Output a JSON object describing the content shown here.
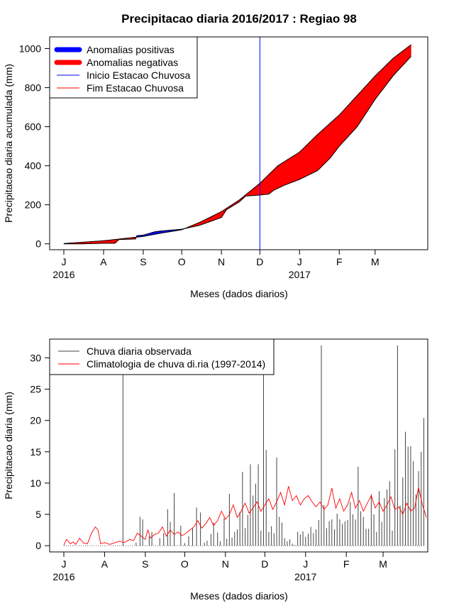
{
  "chart_data": [
    {
      "type": "area",
      "title": "Precipitacao diaria 2016/2017 : Regiao 98",
      "xlabel": "Meses (dados diarios)",
      "ylabel": "Precipitacao diaria acumulada (mm)",
      "x_ticks": [
        "J",
        "A",
        "S",
        "O",
        "N",
        "D",
        "J",
        "F",
        "M"
      ],
      "x_tick_dates": [
        "2016-07-01",
        "2016-08-01",
        "2016-09-01",
        "2016-10-01",
        "2016-11-01",
        "2016-12-01",
        "2017-01-01",
        "2017-02-01",
        "2017-03-01"
      ],
      "year_labels": [
        {
          "label": "2016",
          "date": "2016-07-01"
        },
        {
          "label": "2017",
          "date": "2017-01-01"
        }
      ],
      "xlim": [
        "2016-07-01",
        "2017-03-31"
      ],
      "y_ticks": [
        0,
        200,
        400,
        600,
        800,
        1000
      ],
      "ylim": [
        -30,
        1060
      ],
      "legend": {
        "position": "top-left",
        "entries": [
          {
            "label": "Anomalias positivas",
            "color": "#0000ff",
            "style": "thick"
          },
          {
            "label": "Anomalias negativas",
            "color": "#ff0000",
            "style": "thick"
          },
          {
            "label": "Inicio Estacao Chuvosa",
            "color": "#0000ff",
            "style": "thin"
          },
          {
            "label": "Fim Estacao Chuvosa",
            "color": "#ff0000",
            "style": "thin"
          }
        ]
      },
      "rainy_season_start": "2016-12-01",
      "series": [
        {
          "name": "Climatologia acumulada",
          "points": [
            [
              "2016-07-01",
              2
            ],
            [
              "2016-07-15",
              8
            ],
            [
              "2016-08-01",
              16
            ],
            [
              "2016-08-15",
              26
            ],
            [
              "2016-09-01",
              38
            ],
            [
              "2016-09-15",
              55
            ],
            [
              "2016-10-01",
              72
            ],
            [
              "2016-10-15",
              110
            ],
            [
              "2016-11-01",
              165
            ],
            [
              "2016-11-15",
              225
            ],
            [
              "2016-12-01",
              310
            ],
            [
              "2016-12-15",
              400
            ],
            [
              "2017-01-01",
              470
            ],
            [
              "2017-01-15",
              560
            ],
            [
              "2017-02-01",
              660
            ],
            [
              "2017-02-15",
              760
            ],
            [
              "2017-03-01",
              860
            ],
            [
              "2017-03-15",
              950
            ],
            [
              "2017-03-29",
              1020
            ]
          ]
        },
        {
          "name": "Observado acumulado",
          "points": [
            [
              "2016-07-01",
              0
            ],
            [
              "2016-07-15",
              0
            ],
            [
              "2016-08-01",
              3
            ],
            [
              "2016-08-10",
              3
            ],
            [
              "2016-08-13",
              22
            ],
            [
              "2016-08-26",
              25
            ],
            [
              "2016-08-27",
              42
            ],
            [
              "2016-09-01",
              45
            ],
            [
              "2016-09-10",
              62
            ],
            [
              "2016-09-15",
              66
            ],
            [
              "2016-10-01",
              75
            ],
            [
              "2016-10-15",
              95
            ],
            [
              "2016-11-01",
              135
            ],
            [
              "2016-11-05",
              175
            ],
            [
              "2016-11-15",
              215
            ],
            [
              "2016-11-20",
              245
            ],
            [
              "2016-12-01",
              250
            ],
            [
              "2016-12-08",
              255
            ],
            [
              "2016-12-12",
              275
            ],
            [
              "2016-12-20",
              300
            ],
            [
              "2017-01-01",
              330
            ],
            [
              "2017-01-15",
              375
            ],
            [
              "2017-01-25",
              440
            ],
            [
              "2017-02-01",
              500
            ],
            [
              "2017-02-15",
              600
            ],
            [
              "2017-03-01",
              740
            ],
            [
              "2017-03-15",
              860
            ],
            [
              "2017-03-29",
              960
            ]
          ]
        }
      ]
    },
    {
      "type": "bar",
      "xlabel": "Meses (dados diarios)",
      "ylabel": "Precipitacao diaria (mm)",
      "x_ticks": [
        "J",
        "A",
        "S",
        "O",
        "N",
        "D",
        "J",
        "F",
        "M"
      ],
      "x_tick_dates": [
        "2016-07-01",
        "2016-08-01",
        "2016-09-01",
        "2016-10-01",
        "2016-11-01",
        "2016-12-01",
        "2017-01-01",
        "2017-02-01",
        "2017-03-01"
      ],
      "year_labels": [
        {
          "label": "2016",
          "date": "2016-07-01"
        },
        {
          "label": "2017",
          "date": "2017-01-01"
        }
      ],
      "xlim": [
        "2016-07-01",
        "2017-04-04"
      ],
      "y_ticks": [
        0,
        5,
        10,
        15,
        20,
        25,
        30
      ],
      "ylim": [
        -1,
        33
      ],
      "legend": {
        "position": "top-left",
        "entries": [
          {
            "label": "Chuva diaria observada",
            "color": "#444444"
          },
          {
            "label": "Climatologia de chuva di.ria (1997-2014)",
            "color": "#ff0000"
          }
        ]
      },
      "observed_color": "#444444",
      "climatology_color": "#ff0000",
      "observed_daily": [
        [
          "2016-08-15",
          27.5
        ],
        [
          "2016-08-25",
          0.5
        ],
        [
          "2016-08-28",
          4.6
        ],
        [
          "2016-08-30",
          4.2
        ],
        [
          "2016-09-04",
          1.5
        ],
        [
          "2016-09-06",
          2.2
        ],
        [
          "2016-09-12",
          1.2
        ],
        [
          "2016-09-15",
          2.0
        ],
        [
          "2016-09-18",
          5.8
        ],
        [
          "2016-09-20",
          3.8
        ],
        [
          "2016-09-23",
          8.4
        ],
        [
          "2016-09-28",
          3.2
        ],
        [
          "2016-10-01",
          0.4
        ],
        [
          "2016-10-04",
          1.5
        ],
        [
          "2016-10-07",
          2.8
        ],
        [
          "2016-10-10",
          6.1
        ],
        [
          "2016-10-13",
          5.3
        ],
        [
          "2016-10-16",
          0.5
        ],
        [
          "2016-10-18",
          0.8
        ],
        [
          "2016-10-21",
          1.9
        ],
        [
          "2016-10-23",
          3.7
        ],
        [
          "2016-10-26",
          2.1
        ],
        [
          "2016-10-28",
          0.7
        ],
        [
          "2016-10-31",
          4.4
        ],
        [
          "2016-11-02",
          1.1
        ],
        [
          "2016-11-04",
          8.3
        ],
        [
          "2016-11-06",
          1.3
        ],
        [
          "2016-11-08",
          2.2
        ],
        [
          "2016-11-10",
          2.6
        ],
        [
          "2016-11-12",
          5.4
        ],
        [
          "2016-11-14",
          11.8
        ],
        [
          "2016-11-16",
          2.8
        ],
        [
          "2016-11-18",
          4.9
        ],
        [
          "2016-11-20",
          13.0
        ],
        [
          "2016-11-22",
          8.0
        ],
        [
          "2016-11-24",
          9.9
        ],
        [
          "2016-11-26",
          13.0
        ],
        [
          "2016-11-28",
          2.4
        ],
        [
          "2016-11-30",
          27.5
        ],
        [
          "2016-12-02",
          15.3
        ],
        [
          "2016-12-04",
          2.2
        ],
        [
          "2016-12-06",
          3.1
        ],
        [
          "2016-12-08",
          2.0
        ],
        [
          "2016-12-10",
          14.1
        ],
        [
          "2016-12-12",
          4.6
        ],
        [
          "2016-12-14",
          3.7
        ],
        [
          "2016-12-16",
          1.2
        ],
        [
          "2016-12-18",
          0.7
        ],
        [
          "2016-12-20",
          1.0
        ],
        [
          "2016-12-22",
          0.3
        ],
        [
          "2016-12-24",
          0.1
        ],
        [
          "2016-12-26",
          2.2
        ],
        [
          "2016-12-28",
          1.8
        ],
        [
          "2016-12-30",
          2.3
        ],
        [
          "2017-01-01",
          1.4
        ],
        [
          "2017-01-03",
          1.9
        ],
        [
          "2017-01-05",
          3.0
        ],
        [
          "2017-01-07",
          2.0
        ],
        [
          "2017-01-09",
          2.6
        ],
        [
          "2017-01-11",
          4.1
        ],
        [
          "2017-01-13",
          32.0
        ],
        [
          "2017-01-15",
          6.5
        ],
        [
          "2017-01-17",
          2.8
        ],
        [
          "2017-01-19",
          3.9
        ],
        [
          "2017-01-21",
          4.2
        ],
        [
          "2017-01-23",
          2.6
        ],
        [
          "2017-01-25",
          5.1
        ],
        [
          "2017-01-27",
          4.2
        ],
        [
          "2017-01-29",
          3.5
        ],
        [
          "2017-01-31",
          3.9
        ],
        [
          "2017-02-02",
          4.1
        ],
        [
          "2017-02-04",
          7.0
        ],
        [
          "2017-02-06",
          5.0
        ],
        [
          "2017-02-08",
          4.2
        ],
        [
          "2017-02-10",
          12.6
        ],
        [
          "2017-02-12",
          5.5
        ],
        [
          "2017-02-14",
          4.6
        ],
        [
          "2017-02-16",
          2.7
        ],
        [
          "2017-02-18",
          2.7
        ],
        [
          "2017-02-20",
          8.2
        ],
        [
          "2017-02-22",
          5.0
        ],
        [
          "2017-02-24",
          2.2
        ],
        [
          "2017-02-26",
          8.7
        ],
        [
          "2017-02-28",
          3.8
        ],
        [
          "2017-03-02",
          7.6
        ],
        [
          "2017-03-04",
          9.0
        ],
        [
          "2017-03-06",
          10.3
        ],
        [
          "2017-03-08",
          2.4
        ],
        [
          "2017-03-10",
          15.4
        ],
        [
          "2017-03-12",
          32.0
        ],
        [
          "2017-03-14",
          6.4
        ],
        [
          "2017-03-16",
          10.9
        ],
        [
          "2017-03-18",
          18.2
        ],
        [
          "2017-03-20",
          15.8
        ],
        [
          "2017-03-22",
          15.9
        ],
        [
          "2017-03-24",
          13.5
        ],
        [
          "2017-03-26",
          8.2
        ],
        [
          "2017-03-28",
          11.9
        ],
        [
          "2017-03-30",
          15.0
        ],
        [
          "2017-04-01",
          20.4
        ]
      ],
      "climatology_daily": [
        [
          "2016-07-01",
          0.1
        ],
        [
          "2016-07-03",
          1.0
        ],
        [
          "2016-07-06",
          0.3
        ],
        [
          "2016-07-08",
          0.6
        ],
        [
          "2016-07-10",
          0.2
        ],
        [
          "2016-07-13",
          1.2
        ],
        [
          "2016-07-16",
          0.4
        ],
        [
          "2016-07-19",
          0.3
        ],
        [
          "2016-07-22",
          2.0
        ],
        [
          "2016-07-25",
          3.0
        ],
        [
          "2016-07-27",
          2.5
        ],
        [
          "2016-07-29",
          0.3
        ],
        [
          "2016-08-01",
          0.5
        ],
        [
          "2016-08-05",
          0.2
        ],
        [
          "2016-08-08",
          0.4
        ],
        [
          "2016-08-12",
          0.7
        ],
        [
          "2016-08-16",
          0.5
        ],
        [
          "2016-08-20",
          1.0
        ],
        [
          "2016-08-23",
          0.8
        ],
        [
          "2016-08-26",
          2.0
        ],
        [
          "2016-08-29",
          1.5
        ],
        [
          "2016-09-01",
          1.0
        ],
        [
          "2016-09-03",
          2.5
        ],
        [
          "2016-09-05",
          1.2
        ],
        [
          "2016-09-08",
          1.8
        ],
        [
          "2016-09-11",
          2.0
        ],
        [
          "2016-09-14",
          3.0
        ],
        [
          "2016-09-17",
          1.5
        ],
        [
          "2016-09-20",
          2.5
        ],
        [
          "2016-09-23",
          1.8
        ],
        [
          "2016-09-26",
          2.2
        ],
        [
          "2016-09-29",
          1.6
        ],
        [
          "2016-10-02",
          2.0
        ],
        [
          "2016-10-05",
          2.5
        ],
        [
          "2016-10-08",
          3.0
        ],
        [
          "2016-10-11",
          4.0
        ],
        [
          "2016-10-14",
          2.8
        ],
        [
          "2016-10-17",
          3.5
        ],
        [
          "2016-10-20",
          4.5
        ],
        [
          "2016-10-23",
          3.2
        ],
        [
          "2016-10-26",
          4.0
        ],
        [
          "2016-10-29",
          5.5
        ],
        [
          "2016-11-01",
          4.2
        ],
        [
          "2016-11-04",
          5.0
        ],
        [
          "2016-11-07",
          6.5
        ],
        [
          "2016-11-10",
          4.5
        ],
        [
          "2016-11-13",
          5.5
        ],
        [
          "2016-11-16",
          6.8
        ],
        [
          "2016-11-19",
          5.2
        ],
        [
          "2016-11-22",
          6.0
        ],
        [
          "2016-11-25",
          7.0
        ],
        [
          "2016-11-28",
          5.5
        ],
        [
          "2016-12-01",
          6.5
        ],
        [
          "2016-12-04",
          7.5
        ],
        [
          "2016-12-07",
          5.8
        ],
        [
          "2016-12-10",
          7.0
        ],
        [
          "2016-12-13",
          8.5
        ],
        [
          "2016-12-16",
          6.5
        ],
        [
          "2016-12-19",
          9.5
        ],
        [
          "2016-12-22",
          7.2
        ],
        [
          "2016-12-25",
          8.0
        ],
        [
          "2016-12-28",
          6.5
        ],
        [
          "2016-12-31",
          7.5
        ],
        [
          "2017-01-03",
          8.0
        ],
        [
          "2017-01-06",
          7.0
        ],
        [
          "2017-01-09",
          6.2
        ],
        [
          "2017-01-12",
          7.0
        ],
        [
          "2017-01-15",
          5.8
        ],
        [
          "2017-01-18",
          6.5
        ],
        [
          "2017-01-21",
          9.2
        ],
        [
          "2017-01-24",
          6.0
        ],
        [
          "2017-01-27",
          7.5
        ],
        [
          "2017-01-30",
          5.5
        ],
        [
          "2017-02-02",
          6.5
        ],
        [
          "2017-02-05",
          8.5
        ],
        [
          "2017-02-08",
          6.0
        ],
        [
          "2017-02-11",
          7.2
        ],
        [
          "2017-02-14",
          5.5
        ],
        [
          "2017-02-17",
          6.8
        ],
        [
          "2017-02-20",
          8.0
        ],
        [
          "2017-02-23",
          6.0
        ],
        [
          "2017-02-26",
          7.0
        ],
        [
          "2017-03-01",
          5.5
        ],
        [
          "2017-03-04",
          6.5
        ],
        [
          "2017-03-07",
          7.8
        ],
        [
          "2017-03-10",
          5.8
        ],
        [
          "2017-03-13",
          6.2
        ],
        [
          "2017-03-16",
          5.0
        ],
        [
          "2017-03-19",
          6.8
        ],
        [
          "2017-03-22",
          5.5
        ],
        [
          "2017-03-25",
          6.0
        ],
        [
          "2017-03-28",
          9.3
        ],
        [
          "2017-03-31",
          6.5
        ],
        [
          "2017-04-03",
          4.5
        ]
      ]
    }
  ]
}
